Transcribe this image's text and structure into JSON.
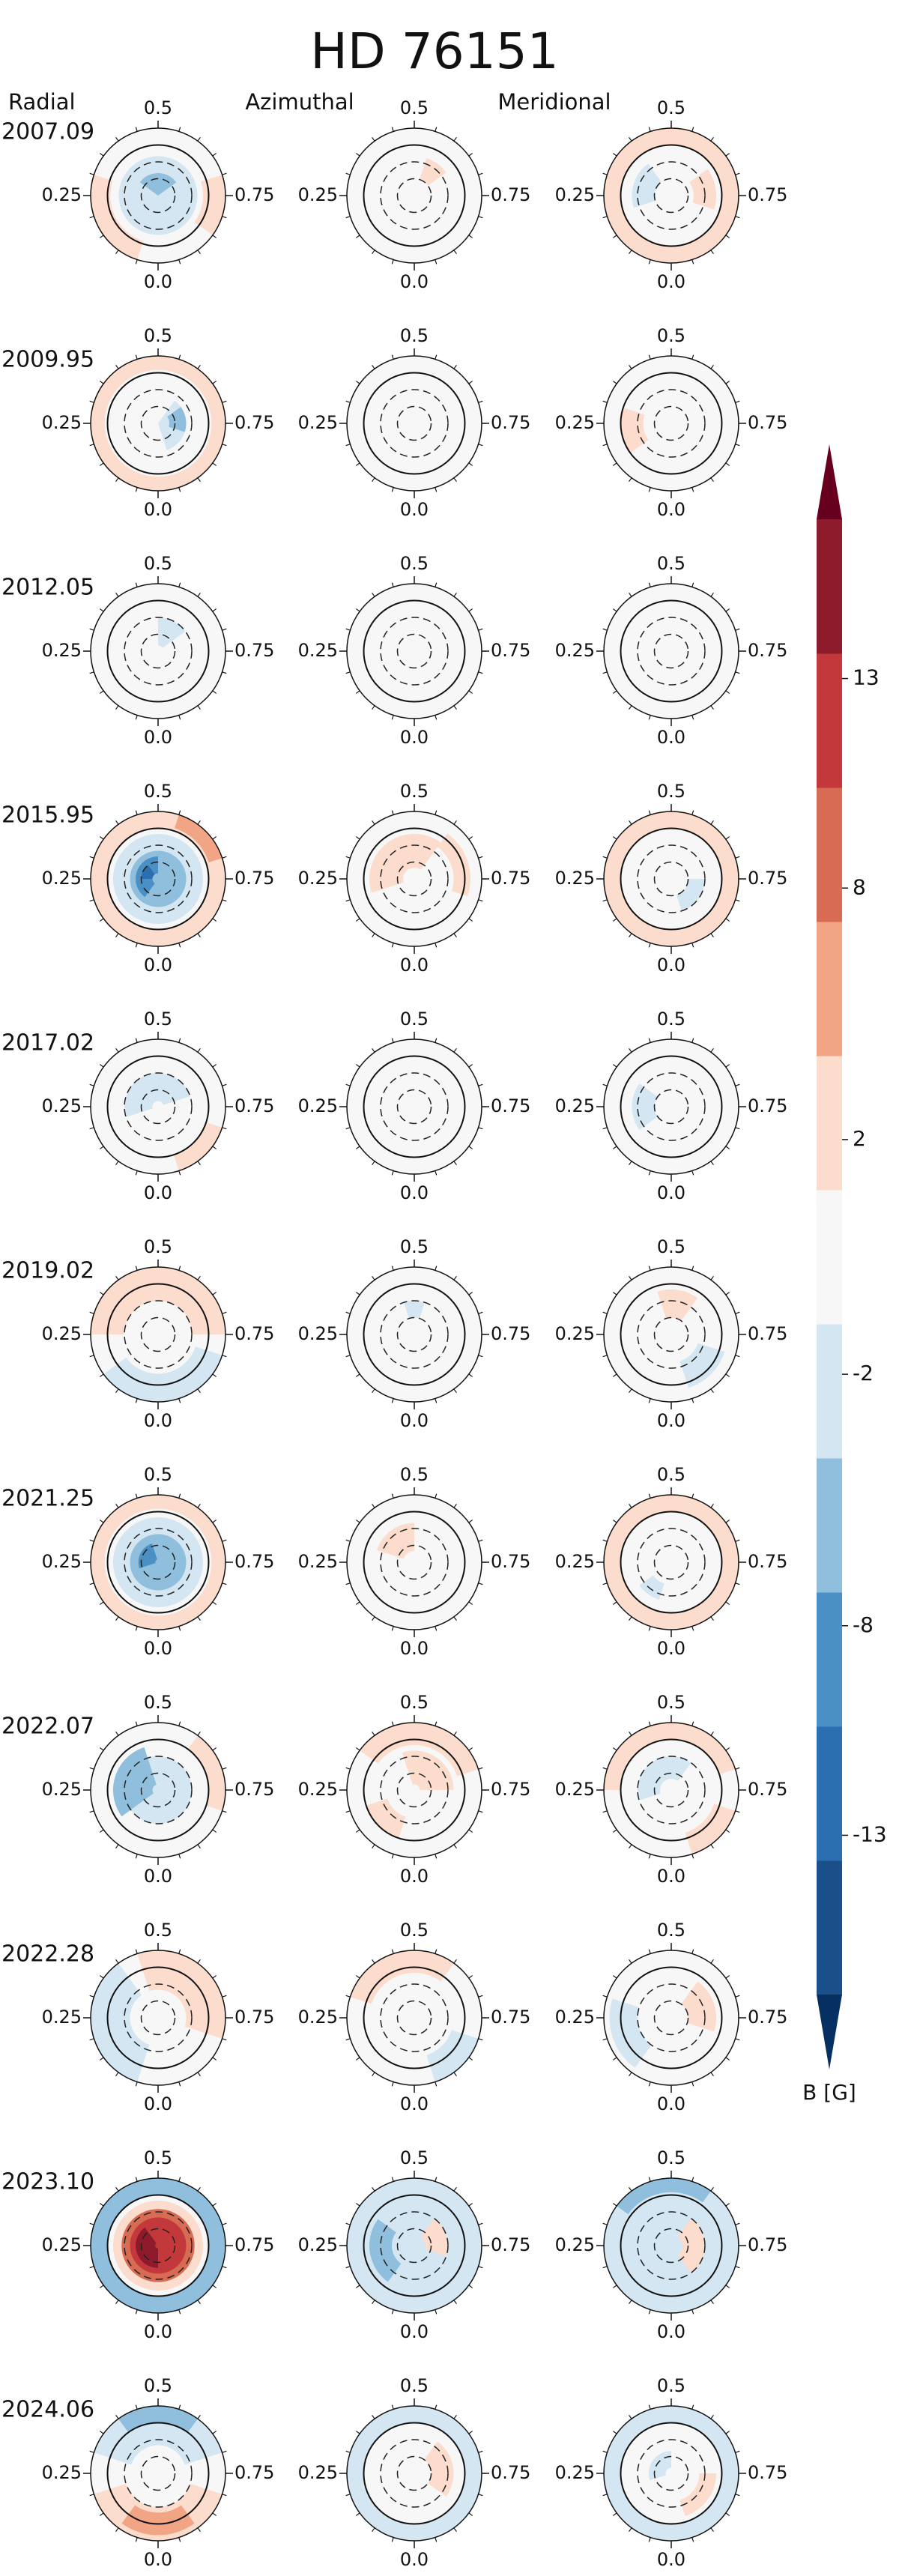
{
  "chart_data": {
    "type": "polar-contour-grid",
    "title": "HD 76151",
    "components": [
      "Radial",
      "Azimuthal",
      "Meridional"
    ],
    "rlim": [
      90,
      -30
    ],
    "lat_grid_dashed": [
      60,
      30
    ],
    "lat_grid_solid": [
      0
    ],
    "phase_ticks": [
      {
        "value": 0,
        "label": "0.0"
      },
      0.25,
      0.5,
      0.75
    ],
    "phase_minor_ticks": [
      0.05,
      0.1,
      0.15,
      0.2,
      0.3,
      0.35,
      0.4,
      0.45,
      0.55,
      0.6,
      0.65,
      0.7,
      0.8,
      0.85,
      0.9,
      0.95
    ],
    "colorbar": {
      "label": "B [G]",
      "levels": [
        -16.8,
        -13.6,
        -10.4,
        -7.2,
        -4,
        -0.8,
        0.8,
        4,
        7.2,
        10.4,
        13.6,
        16.8
      ],
      "colors": [
        "#1a4f8a",
        "#2c6fb0",
        "#4a90c4",
        "#8fbfdc",
        "#d3e6f1",
        "#f7f7f7",
        "#fbdccd",
        "#f1a585",
        "#d86b53",
        "#c3393b",
        "#8e1b2b"
      ],
      "under_color": "#053061",
      "over_color": "#67001f",
      "ticks": [
        13,
        8,
        2,
        -2,
        -8,
        -13
      ]
    },
    "epochs": [
      {
        "label": "2007.09",
        "maps": [
          [
            {
              "phase": [
                0,
                1
              ],
              "lat": [
                20,
                90
              ],
              "B": -3
            },
            {
              "phase": [
                0.35,
                0.65
              ],
              "lat": [
                50,
                90
              ],
              "B": -5
            },
            {
              "phase": [
                0.05,
                0.3
              ],
              "lat": [
                -30,
                5
              ],
              "B": 2
            },
            {
              "phase": [
                0.7,
                0.85
              ],
              "lat": [
                -30,
                10
              ],
              "B": 2
            }
          ],
          [
            {
              "phase": [
                0.55,
                0.65
              ],
              "lat": [
                20,
                60
              ],
              "B": 2
            }
          ],
          [
            {
              "phase": [
                0,
                1
              ],
              "lat": [
                -30,
                0
              ],
              "B": 2
            },
            {
              "phase": [
                0.2,
                0.4
              ],
              "lat": [
                20,
                60
              ],
              "B": -2
            },
            {
              "phase": [
                0.65,
                0.8
              ],
              "lat": [
                10,
                50
              ],
              "B": 2
            }
          ]
        ]
      },
      {
        "label": "2009.95",
        "maps": [
          [
            {
              "phase": [
                0,
                1
              ],
              "lat": [
                -30,
                -5
              ],
              "B": 2
            },
            {
              "phase": [
                0.6,
                0.95
              ],
              "lat": [
                40,
                90
              ],
              "B": -3
            },
            {
              "phase": [
                0.65,
                0.8
              ],
              "lat": [
                40,
                70
              ],
              "B": -5
            }
          ],
          [],
          [
            {
              "phase": [
                0.15,
                0.3
              ],
              "lat": [
                0,
                40
              ],
              "B": 2
            }
          ]
        ]
      },
      {
        "label": "2012.05",
        "maps": [
          [
            {
              "phase": [
                0.5,
                0.65
              ],
              "lat": [
                30,
                80
              ],
              "B": -2
            }
          ],
          [],
          []
        ]
      },
      {
        "label": "2015.95",
        "maps": [
          [
            {
              "phase": [
                0,
                1
              ],
              "lat": [
                -30,
                0
              ],
              "B": 3
            },
            {
              "phase": [
                0.55,
                0.7
              ],
              "lat": [
                -30,
                -5
              ],
              "B": 5
            },
            {
              "phase": [
                0,
                1
              ],
              "lat": [
                10,
                90
              ],
              "B": -3
            },
            {
              "phase": [
                0,
                1
              ],
              "lat": [
                40,
                90
              ],
              "B": -6
            },
            {
              "phase": [
                0.1,
                0.5
              ],
              "lat": [
                50,
                80
              ],
              "B": -9
            },
            {
              "phase": [
                0.25,
                0.4
              ],
              "lat": [
                60,
                80
              ],
              "B": -12
            }
          ],
          [
            {
              "phase": [
                0.2,
                0.6
              ],
              "lat": [
                10,
                70
              ],
              "B": 3
            },
            {
              "phase": [
                0.6,
                0.8
              ],
              "lat": [
                -10,
                20
              ],
              "B": 2
            }
          ],
          [
            {
              "phase": [
                0,
                1
              ],
              "lat": [
                -30,
                0
              ],
              "B": 3
            },
            {
              "phase": [
                0.75,
                0.95
              ],
              "lat": [
                30,
                60
              ],
              "B": -2
            }
          ]
        ]
      },
      {
        "label": "2017.02",
        "maps": [
          [
            {
              "phase": [
                0.2,
                0.7
              ],
              "lat": [
                30,
                80
              ],
              "B": -2
            },
            {
              "phase": [
                0.8,
                0.95
              ],
              "lat": [
                -30,
                0
              ],
              "B": 2
            }
          ],
          [],
          [
            {
              "phase": [
                0.15,
                0.35
              ],
              "lat": [
                20,
                60
              ],
              "B": -2
            }
          ]
        ]
      },
      {
        "label": "2019.02",
        "maps": [
          [
            {
              "phase": [
                0.25,
                0.75
              ],
              "lat": [
                -30,
                30
              ],
              "B": 2
            },
            {
              "phase": [
                0.8,
                1.15
              ],
              "lat": [
                -30,
                20
              ],
              "B": -2
            }
          ],
          [
            {
              "phase": [
                0.45,
                0.55
              ],
              "lat": [
                30,
                60
              ],
              "B": -2
            }
          ],
          [
            {
              "phase": [
                0.45,
                0.6
              ],
              "lat": [
                10,
                60
              ],
              "B": 3
            },
            {
              "phase": [
                0.8,
                0.95
              ],
              "lat": [
                -10,
                40
              ],
              "B": -2
            }
          ]
        ]
      },
      {
        "label": "2021.25",
        "maps": [
          [
            {
              "phase": [
                0,
                1
              ],
              "lat": [
                -30,
                -5
              ],
              "B": 3
            },
            {
              "phase": [
                0,
                1
              ],
              "lat": [
                10,
                90
              ],
              "B": -3
            },
            {
              "phase": [
                0,
                1
              ],
              "lat": [
                40,
                90
              ],
              "B": -6
            },
            {
              "phase": [
                0.2,
                0.45
              ],
              "lat": [
                55,
                85
              ],
              "B": -10
            }
          ],
          [
            {
              "phase": [
                0.3,
                0.5
              ],
              "lat": [
                20,
                70
              ],
              "B": 3
            }
          ],
          [
            {
              "phase": [
                0,
                1
              ],
              "lat": [
                -30,
                0
              ],
              "B": 3
            },
            {
              "phase": [
                0.05,
                0.15
              ],
              "lat": [
                20,
                50
              ],
              "B": -2
            }
          ]
        ]
      },
      {
        "label": "2022.07",
        "maps": [
          [
            {
              "phase": [
                0,
                1
              ],
              "lat": [
                30,
                90
              ],
              "B": -2
            },
            {
              "phase": [
                0.15,
                0.45
              ],
              "lat": [
                10,
                80
              ],
              "B": -4
            },
            {
              "phase": [
                0.6,
                0.8
              ],
              "lat": [
                -30,
                0
              ],
              "B": 2
            }
          ],
          [
            {
              "phase": [
                0.35,
                0.7
              ],
              "lat": [
                -30,
                10
              ],
              "B": 3
            },
            {
              "phase": [
                0.45,
                0.75
              ],
              "lat": [
                20,
                80
              ],
              "B": 4
            },
            {
              "phase": [
                0.05,
                0.2
              ],
              "lat": [
                0,
                40
              ],
              "B": 2
            }
          ],
          [
            {
              "phase": [
                0.25,
                0.7
              ],
              "lat": [
                -30,
                0
              ],
              "B": 2
            },
            {
              "phase": [
                0.2,
                0.6
              ],
              "lat": [
                30,
                70
              ],
              "B": -3
            },
            {
              "phase": [
                0.8,
                0.95
              ],
              "lat": [
                -30,
                10
              ],
              "B": 2
            }
          ]
        ]
      },
      {
        "label": "2022.28",
        "maps": [
          [
            {
              "phase": [
                0.45,
                0.8
              ],
              "lat": [
                -30,
                40
              ],
              "B": 3
            },
            {
              "phase": [
                0.05,
                0.4
              ],
              "lat": [
                -30,
                40
              ],
              "B": -3
            }
          ],
          [
            {
              "phase": [
                0.3,
                0.6
              ],
              "lat": [
                -30,
                10
              ],
              "B": 2
            },
            {
              "phase": [
                0.8,
                0.95
              ],
              "lat": [
                -30,
                20
              ],
              "B": -2
            }
          ],
          [
            {
              "phase": [
                0.6,
                0.8
              ],
              "lat": [
                10,
                60
              ],
              "B": 3
            },
            {
              "phase": [
                0.1,
                0.3
              ],
              "lat": [
                -20,
                30
              ],
              "B": -2
            }
          ]
        ]
      },
      {
        "label": "2023.10",
        "maps": [
          [
            {
              "phase": [
                0,
                1
              ],
              "lat": [
                -30,
                0
              ],
              "B": -4
            },
            {
              "phase": [
                0.35,
                0.65
              ],
              "lat": [
                -30,
                -5
              ],
              "B": -6
            },
            {
              "phase": [
                0,
                1
              ],
              "lat": [
                10,
                90
              ],
              "B": 4
            },
            {
              "phase": [
                0,
                1
              ],
              "lat": [
                25,
                90
              ],
              "B": 8
            },
            {
              "phase": [
                0,
                1
              ],
              "lat": [
                40,
                90
              ],
              "B": 11
            },
            {
              "phase": [
                0,
                0.4
              ],
              "lat": [
                50,
                85
              ],
              "B": 14
            }
          ],
          [
            {
              "phase": [
                0,
                1
              ],
              "lat": [
                -30,
                90
              ],
              "B": -2
            },
            {
              "phase": [
                0.1,
                0.35
              ],
              "lat": [
                10,
                50
              ],
              "B": -5
            },
            {
              "phase": [
                0.6,
                0.8
              ],
              "lat": [
                30,
                70
              ],
              "B": 2
            }
          ],
          [
            {
              "phase": [
                0,
                1
              ],
              "lat": [
                -30,
                90
              ],
              "B": -2
            },
            {
              "phase": [
                0.35,
                0.6
              ],
              "lat": [
                -30,
                -5
              ],
              "B": -5
            },
            {
              "phase": [
                0.6,
                0.9
              ],
              "lat": [
                30,
                70
              ],
              "B": 3
            }
          ]
        ]
      },
      {
        "label": "2024.06",
        "maps": [
          [
            {
              "phase": [
                0.3,
                0.7
              ],
              "lat": [
                -30,
                40
              ],
              "B": -3
            },
            {
              "phase": [
                0.4,
                0.6
              ],
              "lat": [
                -30,
                0
              ],
              "B": -5
            },
            {
              "phase": [
                0.8,
                1.2
              ],
              "lat": [
                -30,
                30
              ],
              "B": 3
            },
            {
              "phase": [
                0.9,
                1.1
              ],
              "lat": [
                -20,
                20
              ],
              "B": 5
            }
          ],
          [
            {
              "phase": [
                0,
                1
              ],
              "lat": [
                -30,
                0
              ],
              "B": -2
            },
            {
              "phase": [
                0.6,
                0.85
              ],
              "lat": [
                20,
                60
              ],
              "B": 3
            }
          ],
          [
            {
              "phase": [
                0,
                1
              ],
              "lat": [
                -30,
                0
              ],
              "B": -2
            },
            {
              "phase": [
                0.75,
                0.95
              ],
              "lat": [
                10,
                40
              ],
              "B": 3
            },
            {
              "phase": [
                0.2,
                0.5
              ],
              "lat": [
                50,
                80
              ],
              "B": -2
            }
          ]
        ]
      }
    ]
  }
}
